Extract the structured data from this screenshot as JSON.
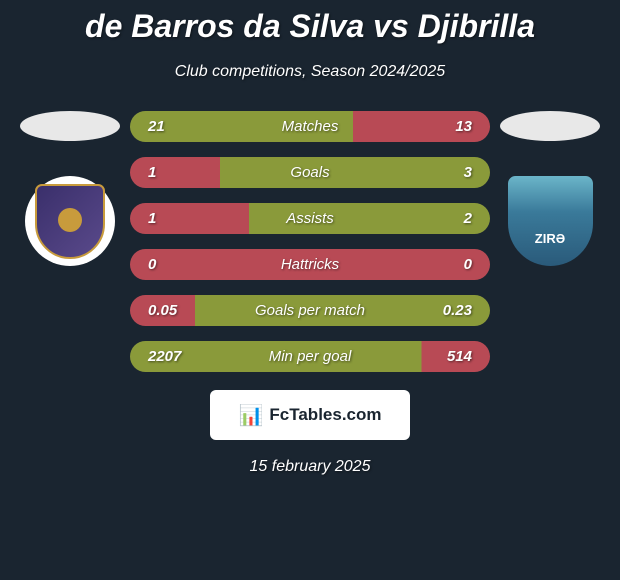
{
  "header": {
    "title": "de Barros da Silva vs Djibrilla",
    "subtitle": "Club competitions, Season 2024/2025"
  },
  "stats": [
    {
      "label": "Matches",
      "left_value": "21",
      "right_value": "13",
      "left_color": "#8a9a3a",
      "right_color": "#b84a55",
      "left_width_pct": 62
    },
    {
      "label": "Goals",
      "left_value": "1",
      "right_value": "3",
      "left_color": "#b84a55",
      "right_color": "#8a9a3a",
      "left_width_pct": 25
    },
    {
      "label": "Assists",
      "left_value": "1",
      "right_value": "2",
      "left_color": "#b84a55",
      "right_color": "#8a9a3a",
      "left_width_pct": 33
    },
    {
      "label": "Hattricks",
      "left_value": "0",
      "right_value": "0",
      "left_color": "#b84a55",
      "right_color": "#b84a55",
      "left_width_pct": 50
    },
    {
      "label": "Goals per match",
      "left_value": "0.05",
      "right_value": "0.23",
      "left_color": "#b84a55",
      "right_color": "#8a9a3a",
      "left_width_pct": 18
    },
    {
      "label": "Min per goal",
      "left_value": "2207",
      "right_value": "514",
      "left_color": "#8a9a3a",
      "right_color": "#b84a55",
      "left_width_pct": 81
    }
  ],
  "footer": {
    "badge_text": "FcTables.com",
    "date": "15 february 2025"
  },
  "colors": {
    "background": "#1a2530",
    "text": "#ffffff",
    "badge_bg": "#ffffff",
    "badge_text": "#1a2530"
  }
}
